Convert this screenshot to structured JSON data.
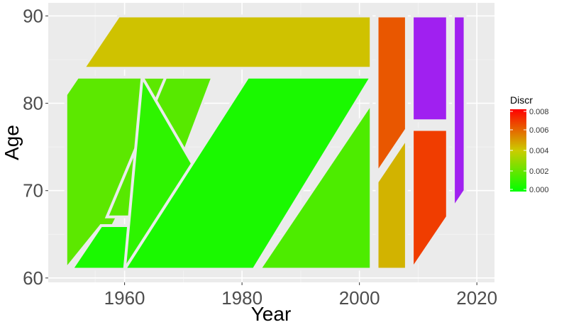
{
  "chart_data": {
    "type": "heatmap",
    "title": "",
    "xlabel": "Year",
    "ylabel": "Age",
    "xlim": [
      1947,
      2023
    ],
    "ylim": [
      59.5,
      91.5
    ],
    "x_ticks": [
      1960,
      1980,
      2000,
      2020
    ],
    "y_ticks": [
      60,
      70,
      80,
      90
    ],
    "grid": true,
    "legend": {
      "title": "Discr",
      "position": "right",
      "min": 0,
      "max": 0.008,
      "ticks": [
        "0.000",
        "0.002",
        "0.004",
        "0.006",
        "0.008"
      ],
      "colors": [
        "#00FF00",
        "#CCCC00",
        "#FF0000"
      ]
    },
    "series": [
      {
        "value": 0.0042,
        "polygon": [
          [
            1953,
            84
          ],
          [
            1959,
            90
          ],
          [
            2002,
            90
          ],
          [
            2002,
            84
          ]
        ]
      },
      {
        "value": 0.0018,
        "polygon": [
          [
            1950,
            61
          ],
          [
            1950,
            81
          ],
          [
            1952,
            83
          ],
          [
            1971,
            83
          ],
          [
            1958,
            66
          ],
          [
            1956,
            66
          ]
        ]
      },
      {
        "value": 0.0005,
        "polygon": [
          [
            1951,
            61
          ],
          [
            1956,
            66
          ],
          [
            1965,
            66
          ],
          [
            1960,
            61
          ]
        ]
      },
      {
        "value": 0.0017,
        "polygon": [
          [
            1957,
            67
          ],
          [
            1966,
            67
          ],
          [
            1975,
            83
          ],
          [
            1967,
            83
          ]
        ]
      },
      {
        "value": 0.0009,
        "polygon": [
          [
            1960,
            61
          ],
          [
            1982,
            61
          ],
          [
            1963,
            83
          ],
          [
            1975,
            83
          ],
          [
            1963,
            83
          ]
        ]
      },
      {
        "value": 0.0005,
        "polygon": [
          [
            1960,
            61
          ],
          [
            1982,
            61
          ],
          [
            2002,
            83
          ],
          [
            1981,
            83
          ]
        ]
      },
      {
        "value": 0.0015,
        "polygon": [
          [
            1983,
            61
          ],
          [
            2002,
            61
          ],
          [
            2002,
            80
          ]
        ]
      },
      {
        "value": 0.0063,
        "polygon": [
          [
            2003,
            72
          ],
          [
            2003,
            90
          ],
          [
            2008,
            90
          ],
          [
            2008,
            77
          ]
        ]
      },
      {
        "value": 0.0045,
        "polygon": [
          [
            2003,
            61
          ],
          [
            2003,
            71
          ],
          [
            2008,
            76
          ],
          [
            2008,
            61
          ]
        ]
      },
      {
        "value": 0.0068,
        "polygon": [
          [
            2009,
            61
          ],
          [
            2009,
            77
          ],
          [
            2015,
            77
          ],
          [
            2015,
            67
          ]
        ]
      },
      {
        "value": null,
        "fill": "#A020F0",
        "polygon": [
          [
            2009,
            78
          ],
          [
            2009,
            90
          ],
          [
            2015,
            90
          ],
          [
            2015,
            78
          ]
        ]
      },
      {
        "value": null,
        "fill": "#A020F0",
        "polygon": [
          [
            2016,
            68
          ],
          [
            2016,
            90
          ],
          [
            2018,
            90
          ],
          [
            2018,
            70
          ]
        ]
      }
    ]
  }
}
